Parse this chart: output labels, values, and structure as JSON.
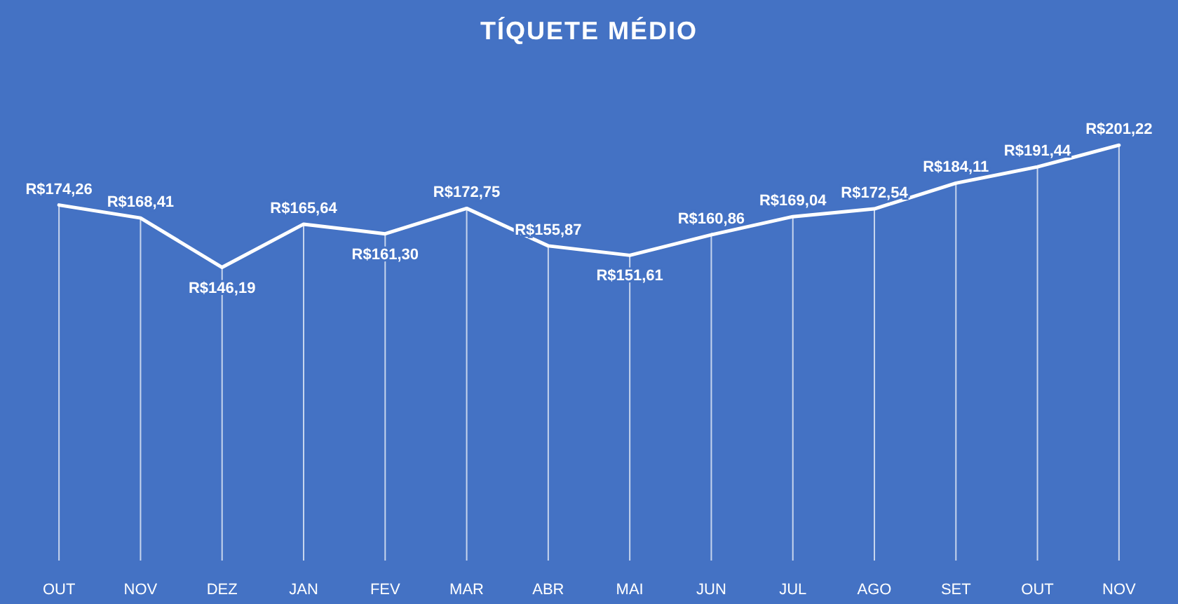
{
  "chart_data": {
    "type": "line",
    "title": "TÍQUETE  MÉDIO",
    "categories": [
      "OUT",
      "NOV",
      "DEZ",
      "JAN",
      "FEV",
      "MAR",
      "ABR",
      "MAI",
      "JUN",
      "JUL",
      "AGO",
      "SET",
      "OUT",
      "NOV"
    ],
    "series": [
      {
        "color": "#ffffff",
        "values": [
          174.26,
          168.41,
          146.19,
          165.64,
          161.3,
          172.75,
          155.87,
          151.61,
          160.86,
          169.04,
          172.54,
          184.11,
          191.44,
          201.22
        ],
        "value_labels": [
          "R$174,26",
          "R$168,41",
          "R$146,19",
          "R$165,64",
          "R$161,30",
          "R$172,75",
          "R$155,87",
          "R$151,61",
          "R$160,86",
          "R$169,04",
          "R$172,54",
          "R$184,11",
          "R$191,44",
          "R$201,22"
        ]
      }
    ],
    "tick_labels": "x",
    "grid": "x",
    "marker": "none",
    "line_style": "solid"
  }
}
